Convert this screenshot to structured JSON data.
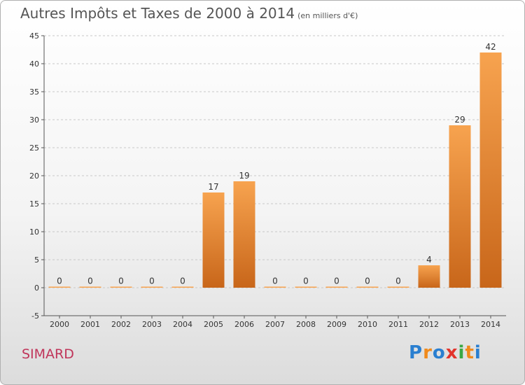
{
  "title": "Autres Impôts et Taxes de 2000 à 2014",
  "unit": "(en milliers d'€)",
  "commune": "SIMARD",
  "logo": {
    "p": "P",
    "r": "r",
    "o": "o",
    "x": "x",
    "i1": "i",
    "t": "t",
    "i2": "i"
  },
  "colors": {
    "bar_light": "#f7a34f",
    "bar_dark": "#c8661a",
    "grid": "#c8c8c8"
  },
  "chart_data": {
    "type": "bar",
    "title": "Autres Impôts et Taxes de 2000 à 2014",
    "categories": [
      "2000",
      "2001",
      "2002",
      "2003",
      "2004",
      "2005",
      "2006",
      "2007",
      "2008",
      "2009",
      "2010",
      "2011",
      "2012",
      "2013",
      "2014"
    ],
    "values": [
      0,
      0,
      0,
      0,
      0,
      17,
      19,
      0,
      0,
      0,
      0,
      0,
      4,
      29,
      42
    ],
    "labels": [
      "0",
      "0",
      "0",
      "0",
      "0",
      "17",
      "19",
      "0",
      "0",
      "0",
      "0",
      "0",
      "4",
      "29",
      "42"
    ],
    "ylim": [
      -5,
      45
    ],
    "yticks": [
      -5,
      0,
      5,
      10,
      15,
      20,
      25,
      30,
      35,
      40,
      45
    ],
    "grid": "horizontal dashed"
  }
}
